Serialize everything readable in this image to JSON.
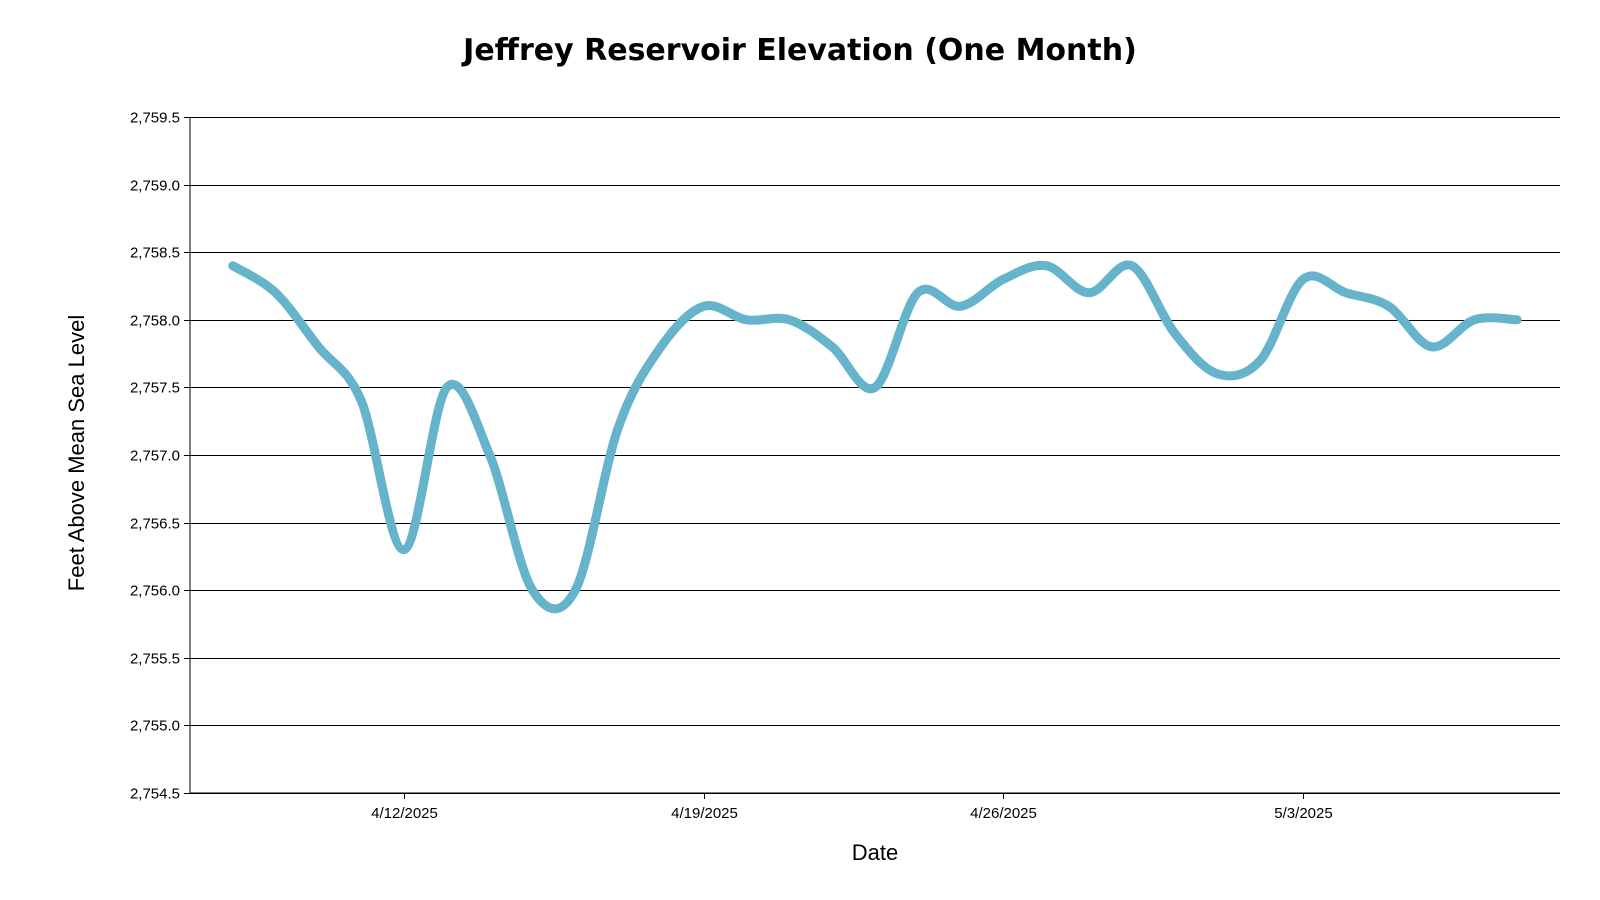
{
  "chart_data": {
    "type": "line",
    "title": "Jeffrey Reservoir Elevation (One Month)",
    "xlabel": "Date",
    "ylabel": "Feet Above Mean Sea Level",
    "ylim": [
      2754.5,
      2759.5
    ],
    "y_ticks": [
      2754.5,
      2755.0,
      2755.5,
      2756.0,
      2756.5,
      2757.0,
      2757.5,
      2758.0,
      2758.5,
      2759.0,
      2759.5
    ],
    "y_tick_labels": [
      "2,754.5",
      "2,755.0",
      "2,755.5",
      "2,756.0",
      "2,756.5",
      "2,757.0",
      "2,757.5",
      "2,758.0",
      "2,758.5",
      "2,759.0",
      "2,759.5"
    ],
    "x_ticks": [
      "2025-04-12",
      "2025-04-19",
      "2025-04-26",
      "2025-05-03"
    ],
    "x_tick_labels": [
      "4/12/2025",
      "4/19/2025",
      "4/26/2025",
      "5/3/2025"
    ],
    "xlim": [
      "2025-04-07",
      "2025-05-09"
    ],
    "grid": true,
    "legend": "none",
    "line_color": "#66b3cc",
    "series": [
      {
        "x": [
          "2025-04-08",
          "2025-04-09",
          "2025-04-10",
          "2025-04-11",
          "2025-04-12",
          "2025-04-13",
          "2025-04-14",
          "2025-04-15",
          "2025-04-16",
          "2025-04-17",
          "2025-04-18",
          "2025-04-19",
          "2025-04-20",
          "2025-04-21",
          "2025-04-22",
          "2025-04-23",
          "2025-04-24",
          "2025-04-25",
          "2025-04-26",
          "2025-04-27",
          "2025-04-28",
          "2025-04-29",
          "2025-04-30",
          "2025-05-01",
          "2025-05-02",
          "2025-05-03",
          "2025-05-04",
          "2025-05-05",
          "2025-05-06",
          "2025-05-07",
          "2025-05-08"
        ],
        "values": [
          2758.4,
          2758.2,
          2757.8,
          2757.4,
          2756.3,
          2757.5,
          2757.0,
          2756.0,
          2756.0,
          2757.2,
          2757.8,
          2758.1,
          2758.0,
          2758.0,
          2757.8,
          2757.5,
          2758.2,
          2758.1,
          2758.3,
          2758.4,
          2758.2,
          2758.4,
          2757.9,
          2757.6,
          2757.7,
          2758.3,
          2758.2,
          2758.1,
          2757.8,
          2758.0,
          2758.0
        ]
      }
    ]
  }
}
